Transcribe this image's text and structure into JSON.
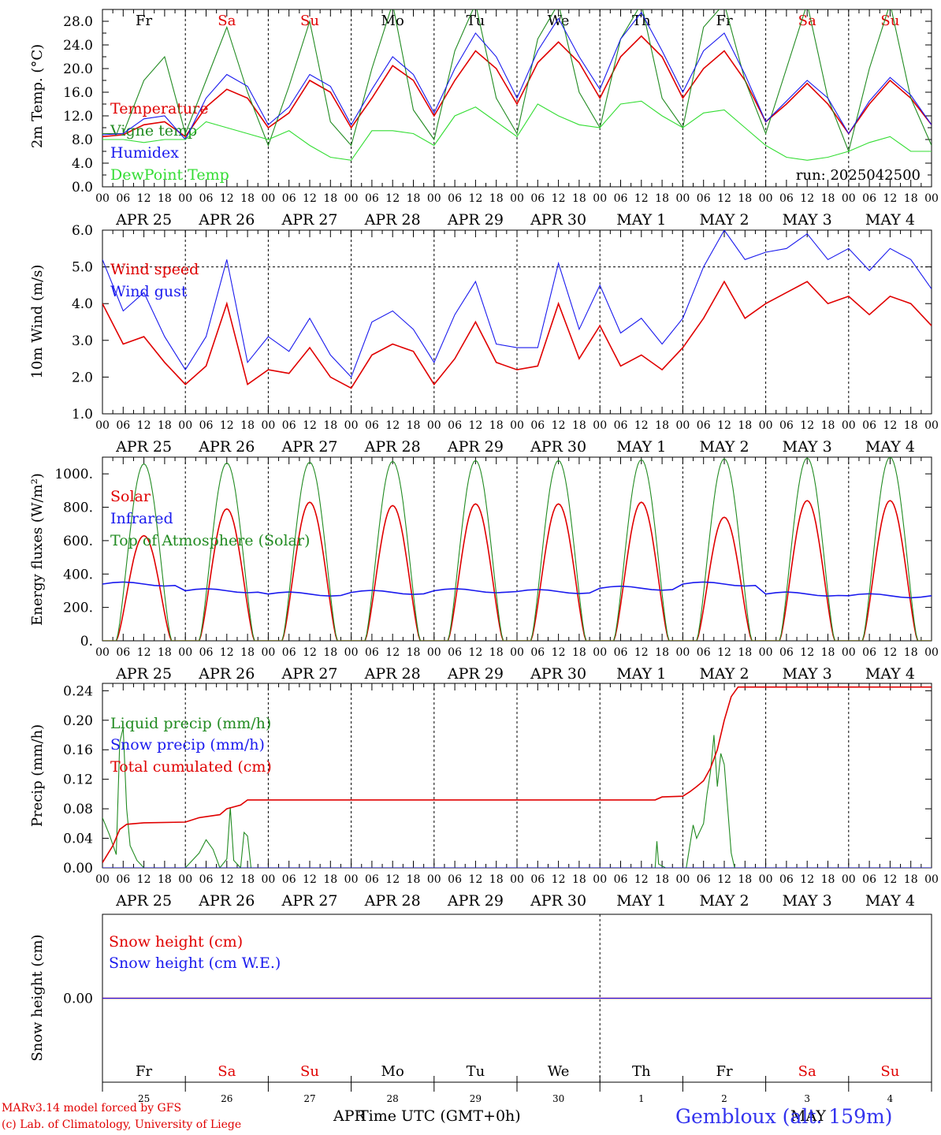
{
  "footer": {
    "credit_line1": "MARv3.14 model forced by GFS",
    "credit_line2": "(c) Lab. of Climatology, University of Liege",
    "xaxis_title": "Time UTC (GMT+0h)",
    "month_left": "APR",
    "month_right": "MAY",
    "location": "Gembloux (alt. 159m)"
  },
  "days": {
    "dates": [
      "APR 25",
      "APR 26",
      "APR 27",
      "APR 28",
      "APR 29",
      "APR 30",
      "MAY  1",
      "MAY  2",
      "MAY  3",
      "MAY  4"
    ],
    "weekdays": [
      "Fr",
      "Sa",
      "Su",
      "Mo",
      "Tu",
      "We",
      "Th",
      "Fr",
      "Sa",
      "Su"
    ],
    "weekday_colors": [
      "#000000",
      "#e00000",
      "#e00000",
      "#000000",
      "#000000",
      "#000000",
      "#000000",
      "#000000",
      "#e00000",
      "#e00000"
    ],
    "day_numbers": [
      "25",
      "26",
      "27",
      "28",
      "29",
      "30",
      "1",
      "2",
      "3",
      "4"
    ],
    "hour_labels": [
      "00",
      "06",
      "12",
      "18"
    ],
    "last_hour_label": "00"
  },
  "chart_data": [
    {
      "type": "line",
      "ylabel": "2m Temp. (°C)",
      "ylim": [
        0,
        30
      ],
      "yticks": [
        "0.0",
        "4.0",
        "8.0",
        "12.0",
        "16.0",
        "20.0",
        "24.0",
        "28.0"
      ],
      "annotation": "run: 2025042500",
      "x": [
        0,
        6,
        12,
        18,
        24,
        30,
        36,
        42,
        48,
        54,
        60,
        66,
        72,
        78,
        84,
        90,
        96,
        102,
        108,
        114,
        120,
        126,
        132,
        138,
        144,
        150,
        156,
        162,
        168,
        174,
        180,
        186,
        192,
        198,
        204,
        210,
        216,
        222,
        228,
        234,
        240
      ],
      "series": [
        {
          "name": "Temperature",
          "color": "#e00000",
          "values": [
            8.5,
            8.8,
            10.5,
            11.0,
            8.5,
            13.5,
            16.5,
            15.0,
            10.0,
            12.5,
            18.0,
            16.0,
            10.0,
            15.0,
            20.5,
            18.0,
            12.0,
            18.0,
            23.0,
            20.0,
            14.0,
            21.0,
            24.5,
            21.0,
            15.0,
            22.0,
            25.5,
            22.0,
            15.0,
            20.0,
            23.0,
            18.0,
            11.0,
            14.0,
            17.5,
            14.0,
            9.0,
            14.0,
            18.0,
            15.0,
            10.5
          ]
        },
        {
          "name": "Vigne temp",
          "color": "#228b22",
          "values": [
            9.0,
            9.0,
            18.0,
            22.0,
            9.0,
            18.0,
            27.0,
            16.0,
            7.0,
            17.0,
            28.0,
            11.0,
            7.0,
            20.0,
            31.0,
            13.0,
            8.0,
            23.0,
            31.0,
            15.0,
            9.0,
            25.0,
            31.0,
            16.0,
            10.0,
            25.0,
            31.0,
            15.0,
            10.0,
            27.0,
            31.0,
            18.0,
            9.0,
            20.0,
            31.0,
            15.0,
            6.0,
            20.0,
            31.0,
            15.0,
            7.0
          ]
        },
        {
          "name": "Humidex",
          "color": "#1a1aee",
          "values": [
            8.8,
            9.0,
            11.5,
            12.0,
            8.0,
            15.0,
            19.0,
            17.0,
            10.5,
            13.5,
            19.0,
            17.0,
            10.5,
            16.5,
            22.0,
            19.0,
            12.5,
            20.0,
            26.0,
            22.0,
            15.0,
            23.0,
            28.5,
            22.0,
            16.5,
            25.0,
            29.5,
            23.0,
            16.0,
            23.0,
            26.0,
            19.0,
            11.0,
            14.5,
            18.0,
            15.0,
            9.0,
            14.5,
            18.5,
            15.5,
            10.5
          ]
        },
        {
          "name": "DewPoint Temp",
          "color": "#33dd33",
          "values": [
            8.0,
            8.0,
            7.5,
            8.0,
            8.0,
            11.0,
            10.0,
            9.0,
            8.0,
            9.5,
            7.0,
            5.0,
            4.5,
            9.5,
            9.5,
            9.0,
            7.0,
            12.0,
            13.5,
            11.0,
            8.5,
            14.0,
            12.0,
            10.5,
            10.0,
            14.0,
            14.5,
            12.0,
            10.0,
            12.5,
            13.0,
            10.0,
            7.0,
            5.0,
            4.5,
            5.0,
            6.0,
            7.5,
            8.5,
            6.0,
            6.0
          ]
        }
      ]
    },
    {
      "type": "line",
      "ylabel": "10m Wind (m/s)",
      "ylim": [
        1,
        6
      ],
      "yticks": [
        "1.0",
        "2.0",
        "3.0",
        "4.0",
        "5.0",
        "6.0"
      ],
      "x": [
        0,
        6,
        12,
        18,
        24,
        30,
        36,
        42,
        48,
        54,
        60,
        66,
        72,
        78,
        84,
        90,
        96,
        102,
        108,
        114,
        120,
        126,
        132,
        138,
        144,
        150,
        156,
        162,
        168,
        174,
        180,
        186,
        192,
        198,
        204,
        210,
        216,
        222,
        228,
        234,
        240
      ],
      "series": [
        {
          "name": "Wind speed",
          "color": "#e00000",
          "values": [
            4.0,
            2.9,
            3.1,
            2.4,
            1.8,
            2.3,
            4.0,
            1.8,
            2.2,
            2.1,
            2.8,
            2.0,
            1.7,
            2.6,
            2.9,
            2.7,
            1.8,
            2.5,
            3.5,
            2.4,
            2.2,
            2.3,
            4.0,
            2.5,
            3.4,
            2.3,
            2.6,
            2.2,
            2.8,
            3.6,
            4.6,
            3.6,
            4.0,
            4.3,
            4.6,
            4.0,
            4.2,
            3.7,
            4.2,
            4.0,
            3.4
          ]
        },
        {
          "name": "Wind gust",
          "color": "#1a1aee",
          "values": [
            5.2,
            3.8,
            4.3,
            3.1,
            2.2,
            3.1,
            5.2,
            2.4,
            3.1,
            2.7,
            3.6,
            2.6,
            2.0,
            3.5,
            3.8,
            3.3,
            2.4,
            3.7,
            4.6,
            2.9,
            2.8,
            2.8,
            5.1,
            3.3,
            4.5,
            3.2,
            3.6,
            2.9,
            3.6,
            5.0,
            6.0,
            5.2,
            5.4,
            5.5,
            5.9,
            5.2,
            5.5,
            4.9,
            5.5,
            5.2,
            4.4
          ]
        }
      ]
    },
    {
      "type": "line",
      "ylabel": "Energy fluxes (W/m²)",
      "ylim": [
        0,
        1100
      ],
      "yticks": [
        "0.",
        "200.",
        "400.",
        "600.",
        "800.",
        "1000."
      ],
      "series": [
        {
          "name": "Solar",
          "color": "#e00000",
          "daily_peaks": [
            630,
            790,
            830,
            810,
            820,
            820,
            830,
            740,
            840,
            840
          ]
        },
        {
          "name": "Infrared",
          "color": "#1a1aee",
          "daily_mean": [
            340,
            300,
            280,
            290,
            300,
            295,
            315,
            340,
            280,
            270
          ]
        },
        {
          "name": "Top of Atmosphere (Solar)",
          "color": "#228b22",
          "daily_peaks": [
            1060,
            1065,
            1070,
            1075,
            1080,
            1080,
            1085,
            1090,
            1095,
            1100
          ]
        }
      ]
    },
    {
      "type": "line",
      "ylabel": "Precip (mm/h)",
      "ylim": [
        0,
        0.25
      ],
      "yticks": [
        "0.00",
        "0.04",
        "0.08",
        "0.12",
        "0.16",
        "0.20",
        "0.24"
      ],
      "series": [
        {
          "name": "Liquid precip (mm/h)",
          "color": "#228b22",
          "points": [
            [
              0,
              0.068
            ],
            [
              2,
              0.045
            ],
            [
              4,
              0.018
            ],
            [
              5,
              0.17
            ],
            [
              6,
              0.19
            ],
            [
              7,
              0.08
            ],
            [
              8,
              0.03
            ],
            [
              10,
              0.01
            ],
            [
              12,
              0.0
            ],
            [
              24,
              0.0
            ],
            [
              28,
              0.02
            ],
            [
              30,
              0.038
            ],
            [
              32,
              0.025
            ],
            [
              34,
              0.0
            ],
            [
              36,
              0.012
            ],
            [
              37,
              0.082
            ],
            [
              38,
              0.01
            ],
            [
              40,
              0.0
            ],
            [
              41,
              0.048
            ],
            [
              42,
              0.043
            ],
            [
              43,
              0.0
            ],
            [
              160,
              0.0
            ],
            [
              160.5,
              0.036
            ],
            [
              161,
              0.005
            ],
            [
              163,
              0.0
            ],
            [
              169,
              0.0
            ],
            [
              171,
              0.058
            ],
            [
              172,
              0.04
            ],
            [
              174,
              0.06
            ],
            [
              175,
              0.1
            ],
            [
              176,
              0.13
            ],
            [
              177,
              0.18
            ],
            [
              178,
              0.11
            ],
            [
              179,
              0.155
            ],
            [
              180,
              0.14
            ],
            [
              181,
              0.08
            ],
            [
              182,
              0.02
            ],
            [
              183,
              0.0
            ],
            [
              240,
              0.0
            ]
          ]
        },
        {
          "name": "Snow precip (mm/h)",
          "color": "#1a1aee",
          "points": [
            [
              0,
              0.0
            ],
            [
              240,
              0.0
            ]
          ]
        },
        {
          "name": "Total cumulated (cm)",
          "color": "#e00000",
          "points": [
            [
              0,
              0.007
            ],
            [
              3,
              0.03
            ],
            [
              5,
              0.052
            ],
            [
              7,
              0.059
            ],
            [
              12,
              0.061
            ],
            [
              24,
              0.062
            ],
            [
              28,
              0.068
            ],
            [
              34,
              0.072
            ],
            [
              36,
              0.08
            ],
            [
              40,
              0.085
            ],
            [
              42,
              0.092
            ],
            [
              160,
              0.092
            ],
            [
              162,
              0.096
            ],
            [
              168,
              0.097
            ],
            [
              170,
              0.103
            ],
            [
              172,
              0.11
            ],
            [
              174,
              0.118
            ],
            [
              176,
              0.135
            ],
            [
              178,
              0.16
            ],
            [
              180,
              0.2
            ],
            [
              182,
              0.232
            ],
            [
              184,
              0.245
            ],
            [
              240,
              0.245
            ]
          ]
        }
      ]
    },
    {
      "type": "line",
      "ylabel": "Snow height (cm)",
      "yticks": [
        "0.00"
      ],
      "series": [
        {
          "name": "Snow height (cm)",
          "color": "#e00000",
          "values": [
            0.0,
            0.0
          ]
        },
        {
          "name": "Snow height (cm W.E.)",
          "color": "#1a1aee",
          "values": [
            0.0,
            0.0
          ]
        }
      ]
    }
  ]
}
